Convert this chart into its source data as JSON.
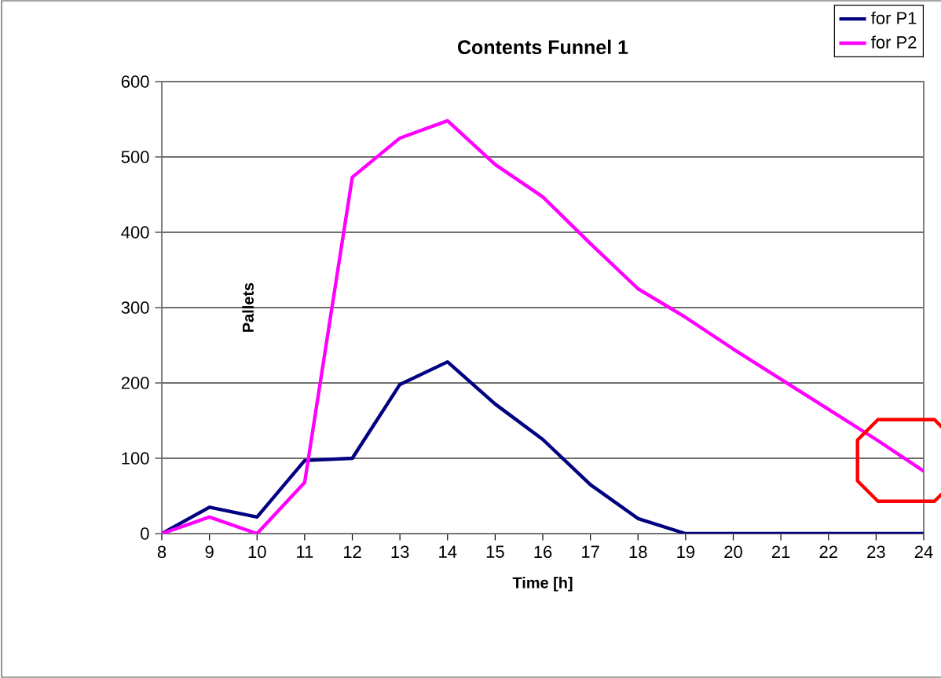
{
  "chart_data": {
    "type": "line",
    "title": "Contents Funnel 1",
    "xlabel": "Time [h]",
    "ylabel": "Pallets",
    "x": [
      8,
      9,
      10,
      11,
      12,
      13,
      14,
      15,
      16,
      17,
      18,
      19,
      20,
      21,
      22,
      23,
      24
    ],
    "series": [
      {
        "name": "for P1",
        "color": "#000080",
        "values": [
          0,
          35,
          22,
          97,
          100,
          198,
          228,
          172,
          125,
          65,
          20,
          0,
          0,
          0,
          0,
          0,
          0
        ]
      },
      {
        "name": "for P2",
        "color": "#ff00ff",
        "values": [
          0,
          22,
          0,
          68,
          473,
          525,
          548,
          490,
          447,
          385,
          325,
          287,
          245,
          205,
          165,
          125,
          83
        ]
      }
    ],
    "xlim": [
      8,
      24
    ],
    "xticks": [
      8,
      9,
      10,
      11,
      12,
      13,
      14,
      15,
      16,
      17,
      18,
      19,
      20,
      21,
      22,
      23,
      24
    ],
    "ylim": [
      0,
      600
    ],
    "yticks": [
      0,
      100,
      200,
      300,
      400,
      500,
      600
    ],
    "grid": "y",
    "legend": "top right",
    "marker": "none",
    "line_style": "solid"
  }
}
